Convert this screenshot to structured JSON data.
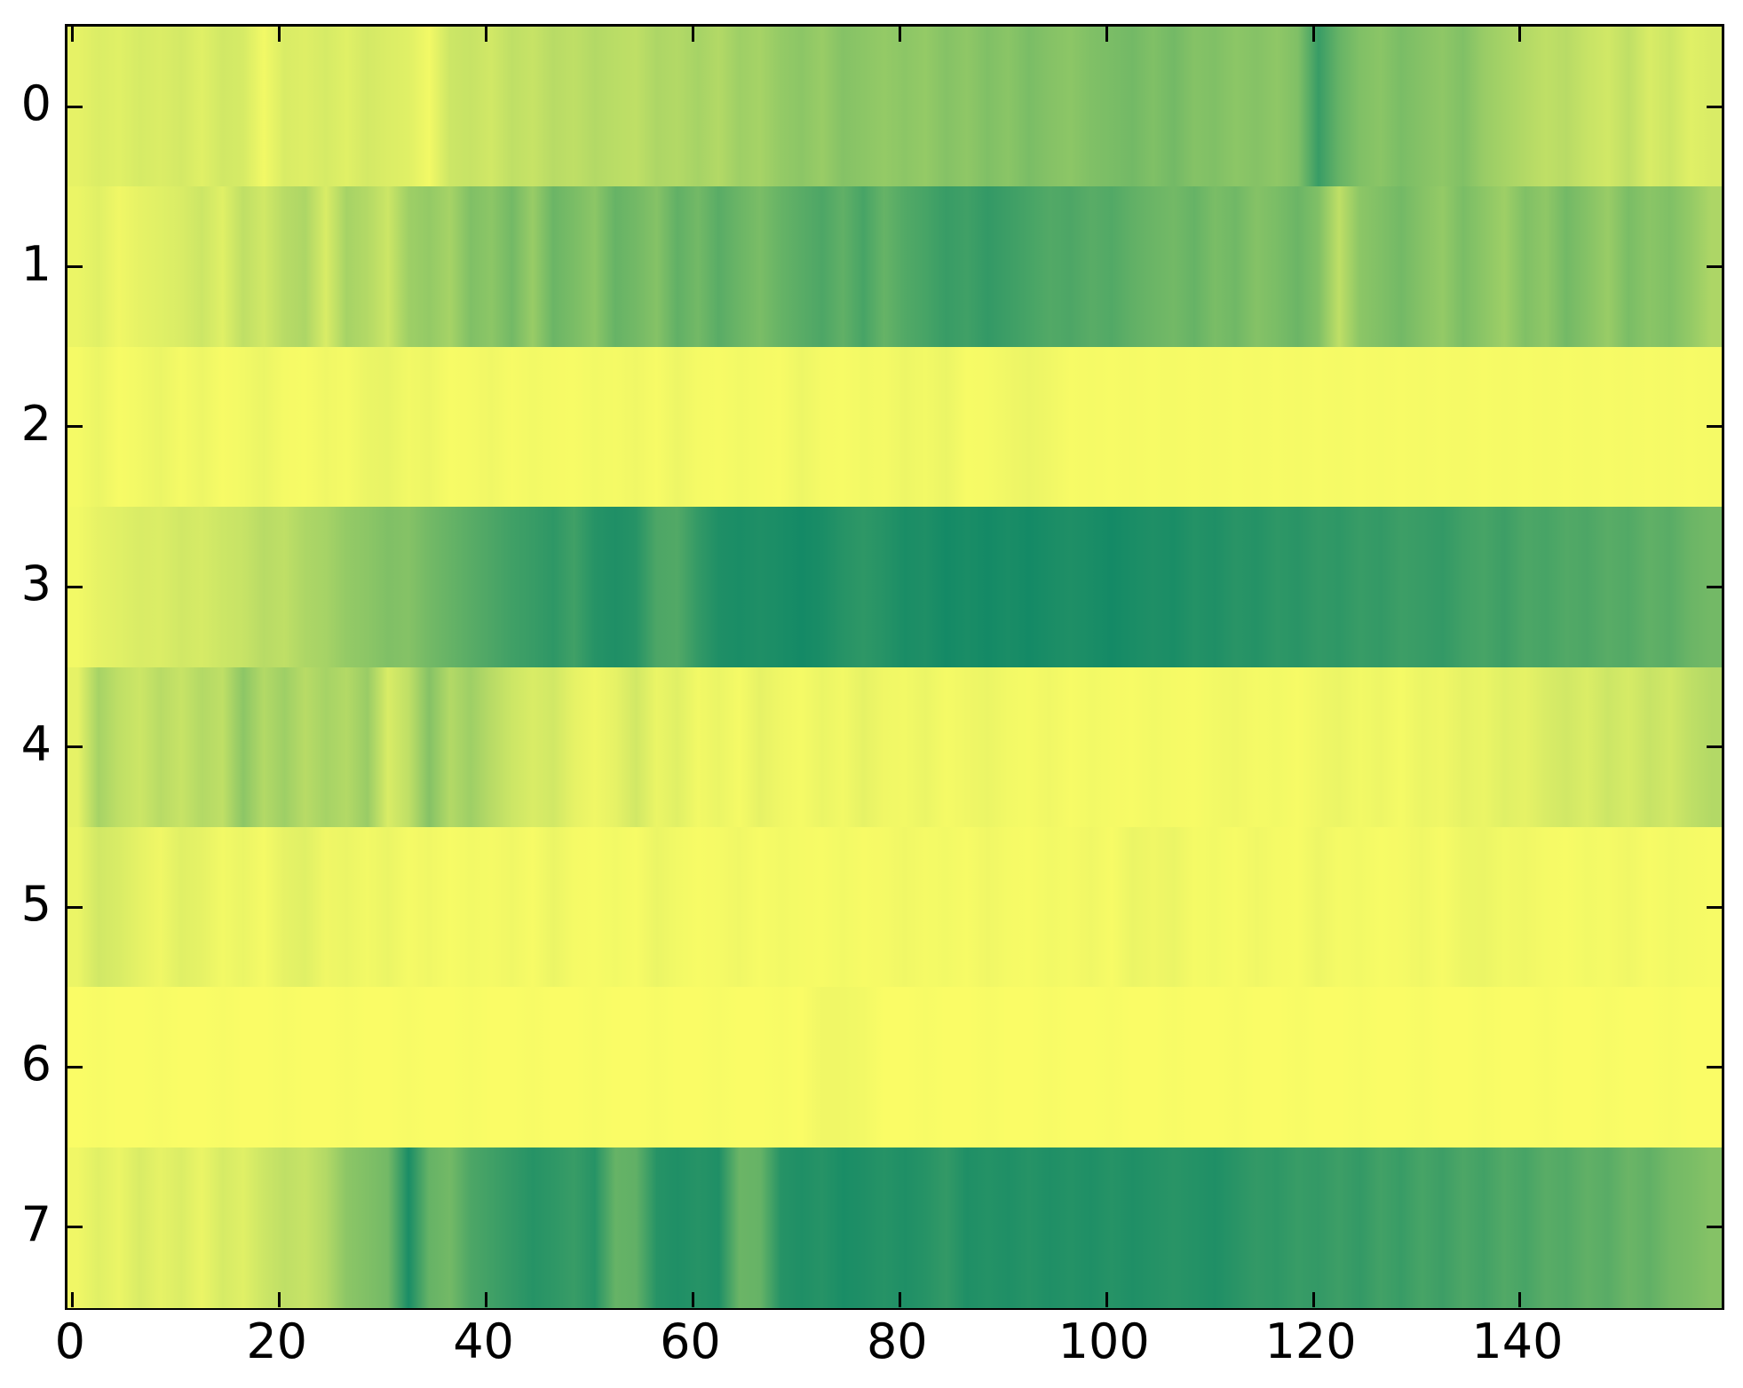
{
  "figure": {
    "background": "#ffffff",
    "frame_color": "#000000",
    "tick_color": "#000000",
    "label_color": "#000000"
  },
  "axes": {
    "x_tick_values": [
      0,
      20,
      40,
      60,
      80,
      100,
      120,
      140
    ],
    "x_tick_labels": [
      "0",
      "20",
      "40",
      "60",
      "80",
      "100",
      "120",
      "140"
    ],
    "y_tick_values": [
      0,
      1,
      2,
      3,
      4,
      5,
      6,
      7
    ],
    "y_tick_labels": [
      "0",
      "1",
      "2",
      "3",
      "4",
      "5",
      "6",
      "7"
    ],
    "x_range": [
      -0.5,
      159.5
    ],
    "y_range": [
      7.5,
      -0.5
    ],
    "grid": "off",
    "legend": "none",
    "title": "",
    "xlabel": "",
    "ylabel": ""
  },
  "chart_data": {
    "type": "heatmap",
    "n_rows": 8,
    "n_columns": 160,
    "x_sample_step": 2,
    "colormap": {
      "name": "summer_r",
      "low_color": "#ffff66",
      "high_color": "#008066",
      "low_meaning": "minimum intensity (yellow)",
      "high_meaning": "maximum intensity (dark teal green)"
    },
    "row_labels": [
      "0",
      "1",
      "2",
      "3",
      "4",
      "5",
      "6",
      "7"
    ],
    "values": [
      [
        0.1,
        0.14,
        0.12,
        0.16,
        0.14,
        0.17,
        0.12,
        0.18,
        0.16,
        0.05,
        0.15,
        0.13,
        0.16,
        0.12,
        0.17,
        0.14,
        0.12,
        0.05,
        0.2,
        0.22,
        0.18,
        0.25,
        0.22,
        0.28,
        0.25,
        0.3,
        0.27,
        0.25,
        0.32,
        0.3,
        0.35,
        0.3,
        0.38,
        0.35,
        0.42,
        0.45,
        0.4,
        0.48,
        0.45,
        0.42,
        0.45,
        0.42,
        0.48,
        0.44,
        0.5,
        0.46,
        0.52,
        0.48,
        0.45,
        0.5,
        0.52,
        0.55,
        0.5,
        0.55,
        0.48,
        0.5,
        0.45,
        0.48,
        0.44,
        0.5,
        0.78,
        0.6,
        0.5,
        0.46,
        0.52,
        0.48,
        0.44,
        0.5,
        0.4,
        0.35,
        0.3,
        0.25,
        0.28,
        0.22,
        0.18,
        0.25,
        0.15,
        0.2,
        0.12,
        0.15
      ],
      [
        0.08,
        0.12,
        0.06,
        0.1,
        0.12,
        0.15,
        0.2,
        0.12,
        0.25,
        0.18,
        0.28,
        0.32,
        0.15,
        0.35,
        0.3,
        0.2,
        0.38,
        0.42,
        0.35,
        0.5,
        0.45,
        0.55,
        0.4,
        0.58,
        0.52,
        0.45,
        0.6,
        0.55,
        0.48,
        0.62,
        0.55,
        0.65,
        0.58,
        0.52,
        0.6,
        0.65,
        0.7,
        0.62,
        0.72,
        0.6,
        0.68,
        0.72,
        0.78,
        0.75,
        0.8,
        0.76,
        0.72,
        0.68,
        0.7,
        0.65,
        0.68,
        0.62,
        0.58,
        0.55,
        0.6,
        0.52,
        0.56,
        0.48,
        0.52,
        0.58,
        0.5,
        0.25,
        0.45,
        0.5,
        0.55,
        0.48,
        0.42,
        0.52,
        0.45,
        0.38,
        0.5,
        0.44,
        0.55,
        0.48,
        0.4,
        0.52,
        0.46,
        0.5,
        0.42,
        0.32
      ],
      [
        0.04,
        0.08,
        0.03,
        0.05,
        0.08,
        0.04,
        0.07,
        0.03,
        0.05,
        0.08,
        0.04,
        0.03,
        0.06,
        0.04,
        0.08,
        0.09,
        0.05,
        0.07,
        0.03,
        0.04,
        0.06,
        0.03,
        0.05,
        0.04,
        0.03,
        0.05,
        0.04,
        0.06,
        0.03,
        0.07,
        0.04,
        0.03,
        0.05,
        0.04,
        0.03,
        0.07,
        0.04,
        0.03,
        0.05,
        0.04,
        0.07,
        0.05,
        0.08,
        0.03,
        0.04,
        0.06,
        0.08,
        0.06,
        0.03,
        0.04,
        0.03,
        0.04,
        0.03,
        0.04,
        0.03,
        0.04,
        0.03,
        0.04,
        0.03,
        0.04,
        0.03,
        0.04,
        0.03,
        0.04,
        0.03,
        0.04,
        0.03,
        0.04,
        0.03,
        0.04,
        0.03,
        0.04,
        0.03,
        0.04,
        0.03,
        0.04,
        0.03,
        0.04,
        0.03,
        0.04
      ],
      [
        0.05,
        0.1,
        0.12,
        0.15,
        0.14,
        0.18,
        0.16,
        0.2,
        0.22,
        0.28,
        0.25,
        0.32,
        0.35,
        0.42,
        0.45,
        0.5,
        0.48,
        0.55,
        0.6,
        0.65,
        0.7,
        0.75,
        0.78,
        0.82,
        0.75,
        0.85,
        0.88,
        0.85,
        0.7,
        0.68,
        0.8,
        0.88,
        0.9,
        0.88,
        0.9,
        0.92,
        0.9,
        0.85,
        0.82,
        0.85,
        0.9,
        0.88,
        0.92,
        0.9,
        0.92,
        0.9,
        0.92,
        0.9,
        0.88,
        0.9,
        0.92,
        0.9,
        0.88,
        0.9,
        0.86,
        0.88,
        0.84,
        0.86,
        0.82,
        0.84,
        0.8,
        0.82,
        0.78,
        0.8,
        0.76,
        0.78,
        0.8,
        0.75,
        0.72,
        0.76,
        0.7,
        0.72,
        0.68,
        0.7,
        0.65,
        0.68,
        0.62,
        0.65,
        0.58,
        0.55
      ],
      [
        0.1,
        0.35,
        0.25,
        0.2,
        0.28,
        0.22,
        0.3,
        0.25,
        0.45,
        0.3,
        0.38,
        0.28,
        0.35,
        0.3,
        0.4,
        0.15,
        0.25,
        0.48,
        0.3,
        0.38,
        0.28,
        0.2,
        0.15,
        0.18,
        0.1,
        0.06,
        0.1,
        0.18,
        0.08,
        0.12,
        0.05,
        0.08,
        0.04,
        0.1,
        0.06,
        0.04,
        0.08,
        0.05,
        0.1,
        0.06,
        0.05,
        0.08,
        0.04,
        0.06,
        0.08,
        0.05,
        0.04,
        0.06,
        0.03,
        0.05,
        0.04,
        0.03,
        0.05,
        0.04,
        0.03,
        0.05,
        0.06,
        0.04,
        0.05,
        0.03,
        0.06,
        0.08,
        0.05,
        0.07,
        0.04,
        0.08,
        0.06,
        0.1,
        0.08,
        0.12,
        0.1,
        0.15,
        0.18,
        0.14,
        0.2,
        0.16,
        0.22,
        0.18,
        0.25,
        0.3
      ],
      [
        0.08,
        0.18,
        0.15,
        0.1,
        0.06,
        0.12,
        0.1,
        0.05,
        0.08,
        0.04,
        0.1,
        0.12,
        0.06,
        0.08,
        0.05,
        0.08,
        0.04,
        0.06,
        0.03,
        0.05,
        0.04,
        0.06,
        0.03,
        0.08,
        0.04,
        0.03,
        0.05,
        0.03,
        0.08,
        0.05,
        0.03,
        0.04,
        0.06,
        0.03,
        0.05,
        0.04,
        0.03,
        0.05,
        0.03,
        0.04,
        0.06,
        0.04,
        0.05,
        0.03,
        0.06,
        0.04,
        0.03,
        0.05,
        0.04,
        0.06,
        0.03,
        0.08,
        0.06,
        0.08,
        0.04,
        0.05,
        0.03,
        0.06,
        0.04,
        0.03,
        0.07,
        0.04,
        0.05,
        0.03,
        0.04,
        0.06,
        0.03,
        0.07,
        0.08,
        0.05,
        0.06,
        0.04,
        0.03,
        0.05,
        0.04,
        0.06,
        0.03,
        0.05,
        0.04,
        0.03
      ],
      [
        0.02,
        0.03,
        0.02,
        0.02,
        0.03,
        0.02,
        0.02,
        0.03,
        0.02,
        0.02,
        0.03,
        0.02,
        0.02,
        0.03,
        0.02,
        0.02,
        0.03,
        0.02,
        0.02,
        0.03,
        0.02,
        0.02,
        0.03,
        0.02,
        0.02,
        0.03,
        0.02,
        0.02,
        0.03,
        0.02,
        0.02,
        0.03,
        0.02,
        0.02,
        0.03,
        0.02,
        0.06,
        0.06,
        0.05,
        0.02,
        0.02,
        0.03,
        0.02,
        0.02,
        0.03,
        0.02,
        0.02,
        0.03,
        0.02,
        0.02,
        0.03,
        0.02,
        0.02,
        0.03,
        0.02,
        0.02,
        0.03,
        0.02,
        0.02,
        0.03,
        0.02,
        0.02,
        0.03,
        0.02,
        0.02,
        0.03,
        0.02,
        0.02,
        0.03,
        0.02,
        0.02,
        0.03,
        0.02,
        0.02,
        0.03,
        0.02,
        0.02,
        0.03,
        0.02,
        0.02
      ],
      [
        0.06,
        0.12,
        0.08,
        0.15,
        0.1,
        0.14,
        0.08,
        0.16,
        0.12,
        0.2,
        0.25,
        0.22,
        0.3,
        0.45,
        0.5,
        0.55,
        0.9,
        0.6,
        0.55,
        0.7,
        0.75,
        0.8,
        0.85,
        0.82,
        0.78,
        0.85,
        0.6,
        0.62,
        0.85,
        0.88,
        0.85,
        0.88,
        0.58,
        0.6,
        0.85,
        0.88,
        0.85,
        0.9,
        0.88,
        0.85,
        0.88,
        0.85,
        0.8,
        0.88,
        0.86,
        0.88,
        0.85,
        0.88,
        0.86,
        0.88,
        0.85,
        0.88,
        0.86,
        0.84,
        0.86,
        0.88,
        0.84,
        0.8,
        0.82,
        0.78,
        0.8,
        0.76,
        0.8,
        0.74,
        0.78,
        0.72,
        0.76,
        0.7,
        0.74,
        0.68,
        0.72,
        0.65,
        0.68,
        0.62,
        0.65,
        0.58,
        0.62,
        0.55,
        0.52,
        0.48
      ]
    ]
  }
}
